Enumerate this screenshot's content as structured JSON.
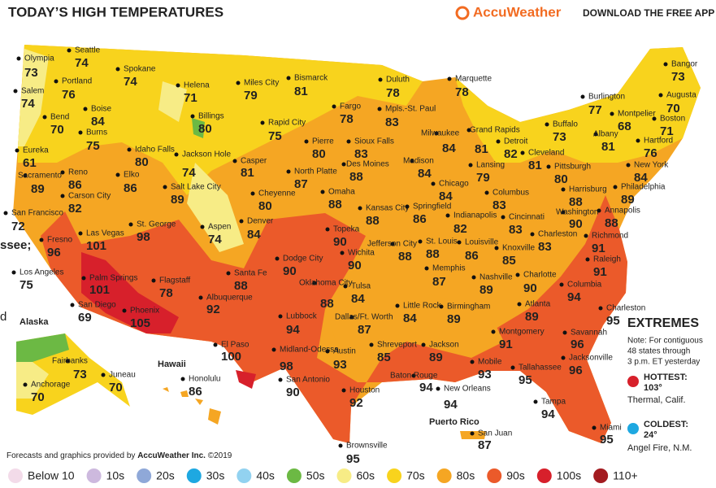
{
  "header": {
    "title": "TODAY’S HIGH TEMPERATURES",
    "brand": "AccuWeather",
    "cta": "DOWNLOAD THE FREE APP"
  },
  "cities": [
    {
      "name": "Olympia",
      "temp": 73
    },
    {
      "name": "Seattle",
      "temp": 74
    },
    {
      "name": "Portland",
      "temp": 76
    },
    {
      "name": "Salem",
      "temp": 74
    },
    {
      "name": "Bend",
      "temp": 70
    },
    {
      "name": "Boise",
      "temp": 84
    },
    {
      "name": "Burns",
      "temp": 75
    },
    {
      "name": "Spokane",
      "temp": 74
    },
    {
      "name": "Helena",
      "temp": 71
    },
    {
      "name": "Miles City",
      "temp": 79
    },
    {
      "name": "Bismarck",
      "temp": 81
    },
    {
      "name": "Duluth",
      "temp": 78
    },
    {
      "name": "Marquette",
      "temp": 78
    },
    {
      "name": "Bangor",
      "temp": 73
    },
    {
      "name": "Burlington",
      "temp": 77
    },
    {
      "name": "Augusta",
      "temp": 70
    },
    {
      "name": "Montpelier",
      "temp": 68
    },
    {
      "name": "Boston",
      "temp": 71
    },
    {
      "name": "Billings",
      "temp": 80
    },
    {
      "name": "Rapid City",
      "temp": 75
    },
    {
      "name": "Fargo",
      "temp": 78
    },
    {
      "name": "Mpls.-St. Paul",
      "temp": 83
    },
    {
      "name": "Eureka",
      "temp": 61
    },
    {
      "name": "Idaho Falls",
      "temp": 80
    },
    {
      "name": "Jackson Hole",
      "temp": 74
    },
    {
      "name": "Pierre",
      "temp": 80
    },
    {
      "name": "Sioux Falls",
      "temp": 83
    },
    {
      "name": "Grand Rapids",
      "temp": 81
    },
    {
      "name": "Detroit",
      "temp": 82
    },
    {
      "name": "Buffalo",
      "temp": 73
    },
    {
      "name": "Albany",
      "temp": 81
    },
    {
      "name": "Hartford",
      "temp": 76
    },
    {
      "name": "Milwaukee",
      "temp": 84
    },
    {
      "name": "Casper",
      "temp": 81
    },
    {
      "name": "Reno",
      "temp": 86
    },
    {
      "name": "Sacramento",
      "temp": 89
    },
    {
      "name": "Elko",
      "temp": 86
    },
    {
      "name": "Carson City",
      "temp": 82
    },
    {
      "name": "Salt Lake City",
      "temp": 89
    },
    {
      "name": "Des Moines",
      "temp": 88
    },
    {
      "name": "Madison",
      "temp": 84
    },
    {
      "name": "Lansing",
      "temp": 79
    },
    {
      "name": "Cleveland",
      "temp": 81
    },
    {
      "name": "Pittsburgh",
      "temp": 80
    },
    {
      "name": "New York",
      "temp": 84
    },
    {
      "name": "North Platte",
      "temp": 87
    },
    {
      "name": "Cheyenne",
      "temp": 80
    },
    {
      "name": "Omaha",
      "temp": 88
    },
    {
      "name": "Chicago",
      "temp": 84
    },
    {
      "name": "Columbus",
      "temp": 83
    },
    {
      "name": "Harrisburg",
      "temp": 88
    },
    {
      "name": "Philadelphia",
      "temp": 89
    },
    {
      "name": "San Francisco",
      "temp": 72
    },
    {
      "name": "Denver",
      "temp": 84
    },
    {
      "name": "Kansas City",
      "temp": 88
    },
    {
      "name": "Springfield",
      "temp": 86
    },
    {
      "name": "Indianapolis",
      "temp": 82
    },
    {
      "name": "Cincinnati",
      "temp": 83
    },
    {
      "name": "Washington",
      "temp": 90
    },
    {
      "name": "Annapolis",
      "temp": 88
    },
    {
      "name": "St. George",
      "temp": 98
    },
    {
      "name": "Aspen",
      "temp": 74
    },
    {
      "name": "Las Vegas",
      "temp": 101
    },
    {
      "name": "Fresno",
      "temp": 96
    },
    {
      "name": "Topeka",
      "temp": 90
    },
    {
      "name": "Jefferson City",
      "temp": 88
    },
    {
      "name": "St. Louis",
      "temp": 88
    },
    {
      "name": "Louisville",
      "temp": 86
    },
    {
      "name": "Charleston",
      "temp": 83
    },
    {
      "name": "Richmond",
      "temp": 91
    },
    {
      "name": "Knoxville",
      "temp": 85
    },
    {
      "name": "Wichita",
      "temp": 90
    },
    {
      "name": "Dodge City",
      "temp": 90
    },
    {
      "name": "Raleigh",
      "temp": 91
    },
    {
      "name": "Los Angeles",
      "temp": 75
    },
    {
      "name": "Palm Springs",
      "temp": 101
    },
    {
      "name": "Flagstaff",
      "temp": 78
    },
    {
      "name": "Santa Fe",
      "temp": 88
    },
    {
      "name": "Oklahoma City",
      "temp": 88
    },
    {
      "name": "Tulsa",
      "temp": 84
    },
    {
      "name": "Memphis",
      "temp": 87
    },
    {
      "name": "Nashville",
      "temp": 89
    },
    {
      "name": "Charlotte",
      "temp": 90
    },
    {
      "name": "Columbia",
      "temp": 94
    },
    {
      "name": "Albuquerque",
      "temp": 92
    },
    {
      "name": "San Diego",
      "temp": 69
    },
    {
      "name": "Phoenix",
      "temp": 105
    },
    {
      "name": "Little Rock",
      "temp": 84
    },
    {
      "name": "Birmingham",
      "temp": 89
    },
    {
      "name": "Atlanta",
      "temp": 89
    },
    {
      "name": "Charleston",
      "temp": 95
    },
    {
      "name": "Lubbock",
      "temp": 94
    },
    {
      "name": "Dallas/Ft. Worth",
      "temp": 87
    },
    {
      "name": "Savannah",
      "temp": 96
    },
    {
      "name": "El Paso",
      "temp": 100
    },
    {
      "name": "Midland-Odessa",
      "temp": 98
    },
    {
      "name": "Montgomery",
      "temp": 91
    },
    {
      "name": "Jackson",
      "temp": 89
    },
    {
      "name": "Shreveport",
      "temp": 85
    },
    {
      "name": "Austin",
      "temp": 93
    },
    {
      "name": "Jacksonville",
      "temp": 96
    },
    {
      "name": "Mobile",
      "temp": 93
    },
    {
      "name": "Tallahassee",
      "temp": 95
    },
    {
      "name": "Baton Rouge",
      "temp": 94
    },
    {
      "name": "New Orleans",
      "temp": 94
    },
    {
      "name": "San Antonio",
      "temp": 90
    },
    {
      "name": "Houston",
      "temp": 92
    },
    {
      "name": "Tampa",
      "temp": 94
    },
    {
      "name": "Fairbanks",
      "temp": 73
    },
    {
      "name": "Juneau",
      "temp": 70
    },
    {
      "name": "Anchorage",
      "temp": 70
    },
    {
      "name": "Honolulu",
      "temp": 86
    },
    {
      "name": "Miami",
      "temp": 95
    },
    {
      "name": "San Juan",
      "temp": 87
    },
    {
      "name": "Brownsville",
      "temp": 95
    }
  ],
  "regions": [
    "Alaska",
    "Hawaii",
    "Puerto Rico"
  ],
  "fragments": [
    "ssee;",
    "d"
  ],
  "extremes": {
    "title": "EXTREMES",
    "note": [
      "Note: For contiguous",
      "48 states through",
      "3 p.m. ET yesterday"
    ],
    "hottest": {
      "label": "HOTTEST:",
      "value": "103°",
      "place": "Thermal, Calif."
    },
    "coldest": {
      "label": "COLDEST:",
      "value": "24°",
      "place": "Angel Fire, N.M."
    }
  },
  "credit": {
    "before": "Forecasts and graphics provided by ",
    "company": "AccuWeather Inc.",
    "after": " ©2019"
  },
  "legend": [
    {
      "label": "Below 10",
      "color": "#f3dbe9"
    },
    {
      "label": "10s",
      "color": "#cdb9de"
    },
    {
      "label": "20s",
      "color": "#8fa8d8"
    },
    {
      "label": "30s",
      "color": "#1ea8e1"
    },
    {
      "label": "40s",
      "color": "#92d2f0"
    },
    {
      "label": "50s",
      "color": "#6cb944"
    },
    {
      "label": "60s",
      "color": "#f7ec86"
    },
    {
      "label": "70s",
      "color": "#f8d31d"
    },
    {
      "label": "80s",
      "color": "#f5a623"
    },
    {
      "label": "90s",
      "color": "#eb5a2a"
    },
    {
      "label": "100s",
      "color": "#d7202b"
    },
    {
      "label": "110+",
      "color": "#a31b20"
    }
  ]
}
